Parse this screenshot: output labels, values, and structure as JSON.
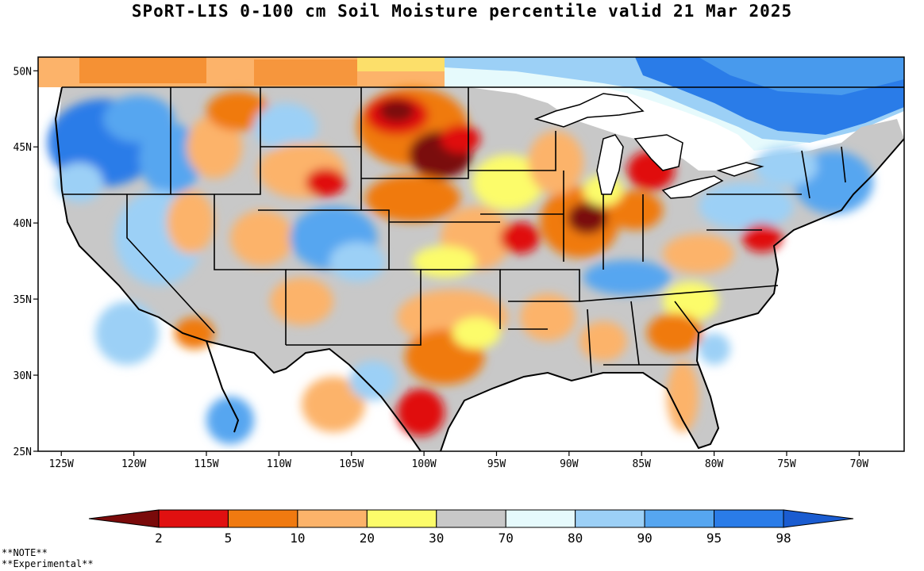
{
  "title": "SPoRT-LIS 0-100 cm Soil Moisture percentile valid 21 Mar 2025",
  "axes": {
    "lat_labels": [
      "50N",
      "45N",
      "40N",
      "35N",
      "30N",
      "25N"
    ],
    "lat_values": [
      50,
      45,
      40,
      35,
      30,
      25
    ],
    "lon_labels": [
      "125W",
      "120W",
      "115W",
      "110W",
      "105W",
      "100W",
      "95W",
      "90W",
      "85W",
      "80W",
      "75W",
      "70W"
    ],
    "lon_values": [
      -125,
      -120,
      -115,
      -110,
      -105,
      -100,
      -95,
      -90,
      -85,
      -80,
      -75,
      -70
    ]
  },
  "colorbar": {
    "colors": [
      "#7a0a0a",
      "#e01010",
      "#f07a10",
      "#fcb36a",
      "#fcfc6a",
      "#c8c8c8",
      "#e6fafc",
      "#9cd0f6",
      "#56a6f0",
      "#2a7ce8",
      "#1a5cd0"
    ],
    "labels": [
      "2",
      "5",
      "10",
      "20",
      "30",
      "70",
      "80",
      "90",
      "95",
      "98"
    ]
  },
  "palette": {
    "very_dry": "#7a0a0a",
    "dry": "#e01010",
    "orange": "#f07a10",
    "light_orange": "#fcb36a",
    "yellow": "#fcfc6a",
    "gray": "#c8c8c8",
    "very_light_blue": "#e6fafc",
    "light_blue": "#9cd0f6",
    "blue": "#56a6f0",
    "deep_blue": "#2a7ce8",
    "darkest_blue": "#1a5cd0"
  },
  "notes": [
    "**NOTE**",
    "**Experimental**"
  ]
}
